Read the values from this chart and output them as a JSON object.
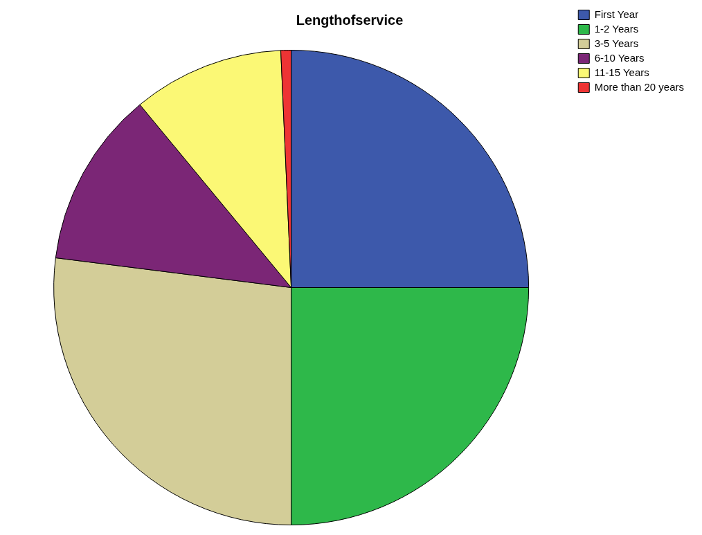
{
  "chart_data": {
    "type": "pie",
    "title": "Lengthofservice",
    "categories": [
      "First Year",
      "1-2 Years",
      "3-5 Years",
      "6-10 Years",
      "11-15 Years",
      "More than 20 years"
    ],
    "values": [
      25,
      25,
      27,
      12,
      10.3,
      0.7
    ],
    "colors": [
      "#3d59ab",
      "#2eb84a",
      "#d3cd98",
      "#7b2676",
      "#fbf875",
      "#ee3434"
    ],
    "legend": "top right"
  }
}
